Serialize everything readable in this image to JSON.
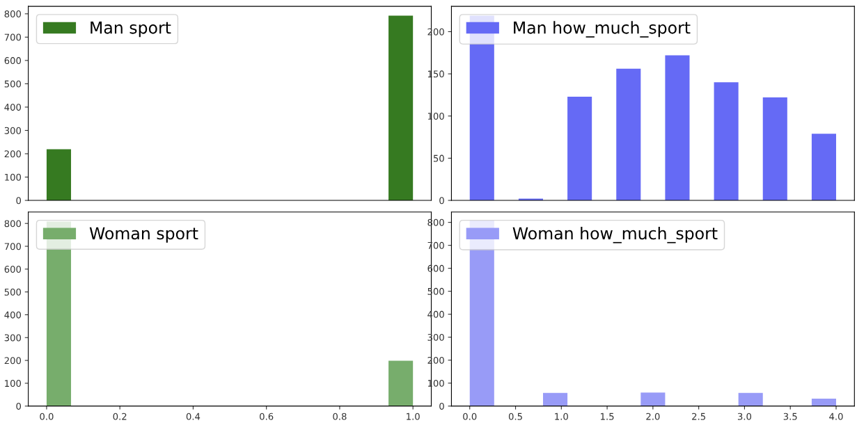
{
  "chart_data": [
    {
      "type": "histogram",
      "bins": [
        0,
        0.0667,
        0.1333,
        0.2,
        0.2667,
        0.3333,
        0.4,
        0.4667,
        0.5333,
        0.6,
        0.6667,
        0.7333,
        0.8,
        0.8667,
        0.9333,
        1
      ],
      "series": [
        {
          "name": "Man sport",
          "color": "#367a21",
          "values": [
            219,
            0,
            0,
            0,
            0,
            0,
            0,
            0,
            0,
            0,
            0,
            0,
            0,
            0,
            792
          ]
        }
      ],
      "xlim": [
        -0.05,
        1.05
      ],
      "xticks": [
        0.0,
        0.2,
        0.4,
        0.6,
        0.8,
        1.0
      ],
      "ylim": [
        0,
        832
      ],
      "yticks": [
        0,
        100,
        200,
        300,
        400,
        500,
        600,
        700,
        800
      ],
      "legend": "top left",
      "tick_labels": "y"
    },
    {
      "type": "histogram",
      "bins": [
        0,
        0.2667,
        0.5333,
        0.8,
        1.0667,
        1.3333,
        1.6,
        1.8667,
        2.1333,
        2.4,
        2.6667,
        2.9333,
        3.2,
        3.4667,
        3.7333,
        4
      ],
      "series": [
        {
          "name": "Man how_much_sport",
          "color": "#656af5",
          "values": [
            219,
            0,
            2,
            0,
            123,
            0,
            156,
            0,
            172,
            0,
            140,
            0,
            122,
            0,
            79
          ]
        }
      ],
      "xlim": [
        -0.2,
        4.2
      ],
      "xticks": [
        0.0,
        0.5,
        1.0,
        1.5,
        2.0,
        2.5,
        3.0,
        3.5,
        4.0
      ],
      "ylim": [
        0,
        230
      ],
      "yticks": [
        0,
        50,
        100,
        150,
        200
      ],
      "legend": "top left",
      "tick_labels": "y"
    },
    {
      "type": "histogram",
      "bins": [
        0,
        0.0667,
        0.1333,
        0.2,
        0.2667,
        0.3333,
        0.4,
        0.4667,
        0.5333,
        0.6,
        0.6667,
        0.7333,
        0.8,
        0.8667,
        0.9333,
        1
      ],
      "series": [
        {
          "name": "Woman sport",
          "color": "#77ad6c",
          "values": [
            808,
            0,
            0,
            0,
            0,
            0,
            0,
            0,
            0,
            0,
            0,
            0,
            0,
            0,
            199
          ]
        }
      ],
      "xlim": [
        -0.05,
        1.05
      ],
      "xticks": [
        {
          "value": 0,
          "label": "0.0"
        },
        0.2,
        0.4,
        0.6,
        0.8,
        {
          "value": 1,
          "label": "1.0"
        }
      ],
      "ylim": [
        0,
        850
      ],
      "yticks": [
        0,
        100,
        200,
        300,
        400,
        500,
        600,
        700,
        800
      ],
      "legend": "top left"
    },
    {
      "type": "histogram",
      "bins": [
        0,
        0.2667,
        0.5333,
        0.8,
        1.0667,
        1.3333,
        1.6,
        1.8667,
        2.1333,
        2.4,
        2.6667,
        2.9333,
        3.2,
        3.4667,
        3.7333,
        4
      ],
      "series": [
        {
          "name": "Woman how_much_sport",
          "color": "#989bf7",
          "values": [
            808,
            0,
            0,
            57,
            0,
            0,
            0,
            59,
            0,
            0,
            0,
            57,
            0,
            0,
            32
          ]
        }
      ],
      "xlim": [
        -0.2,
        4.2
      ],
      "xticks": [
        {
          "value": 0,
          "label": "0.0"
        },
        0.5,
        {
          "value": 1,
          "label": "1.0"
        },
        1.5,
        {
          "value": 2,
          "label": "2.0"
        },
        2.5,
        {
          "value": 3,
          "label": "3.0"
        },
        3.5,
        {
          "value": 4,
          "label": "4.0"
        }
      ],
      "ylim": [
        0,
        845
      ],
      "yticks": [
        0,
        100,
        200,
        300,
        400,
        500,
        600,
        700,
        800
      ],
      "legend": "top left"
    }
  ]
}
